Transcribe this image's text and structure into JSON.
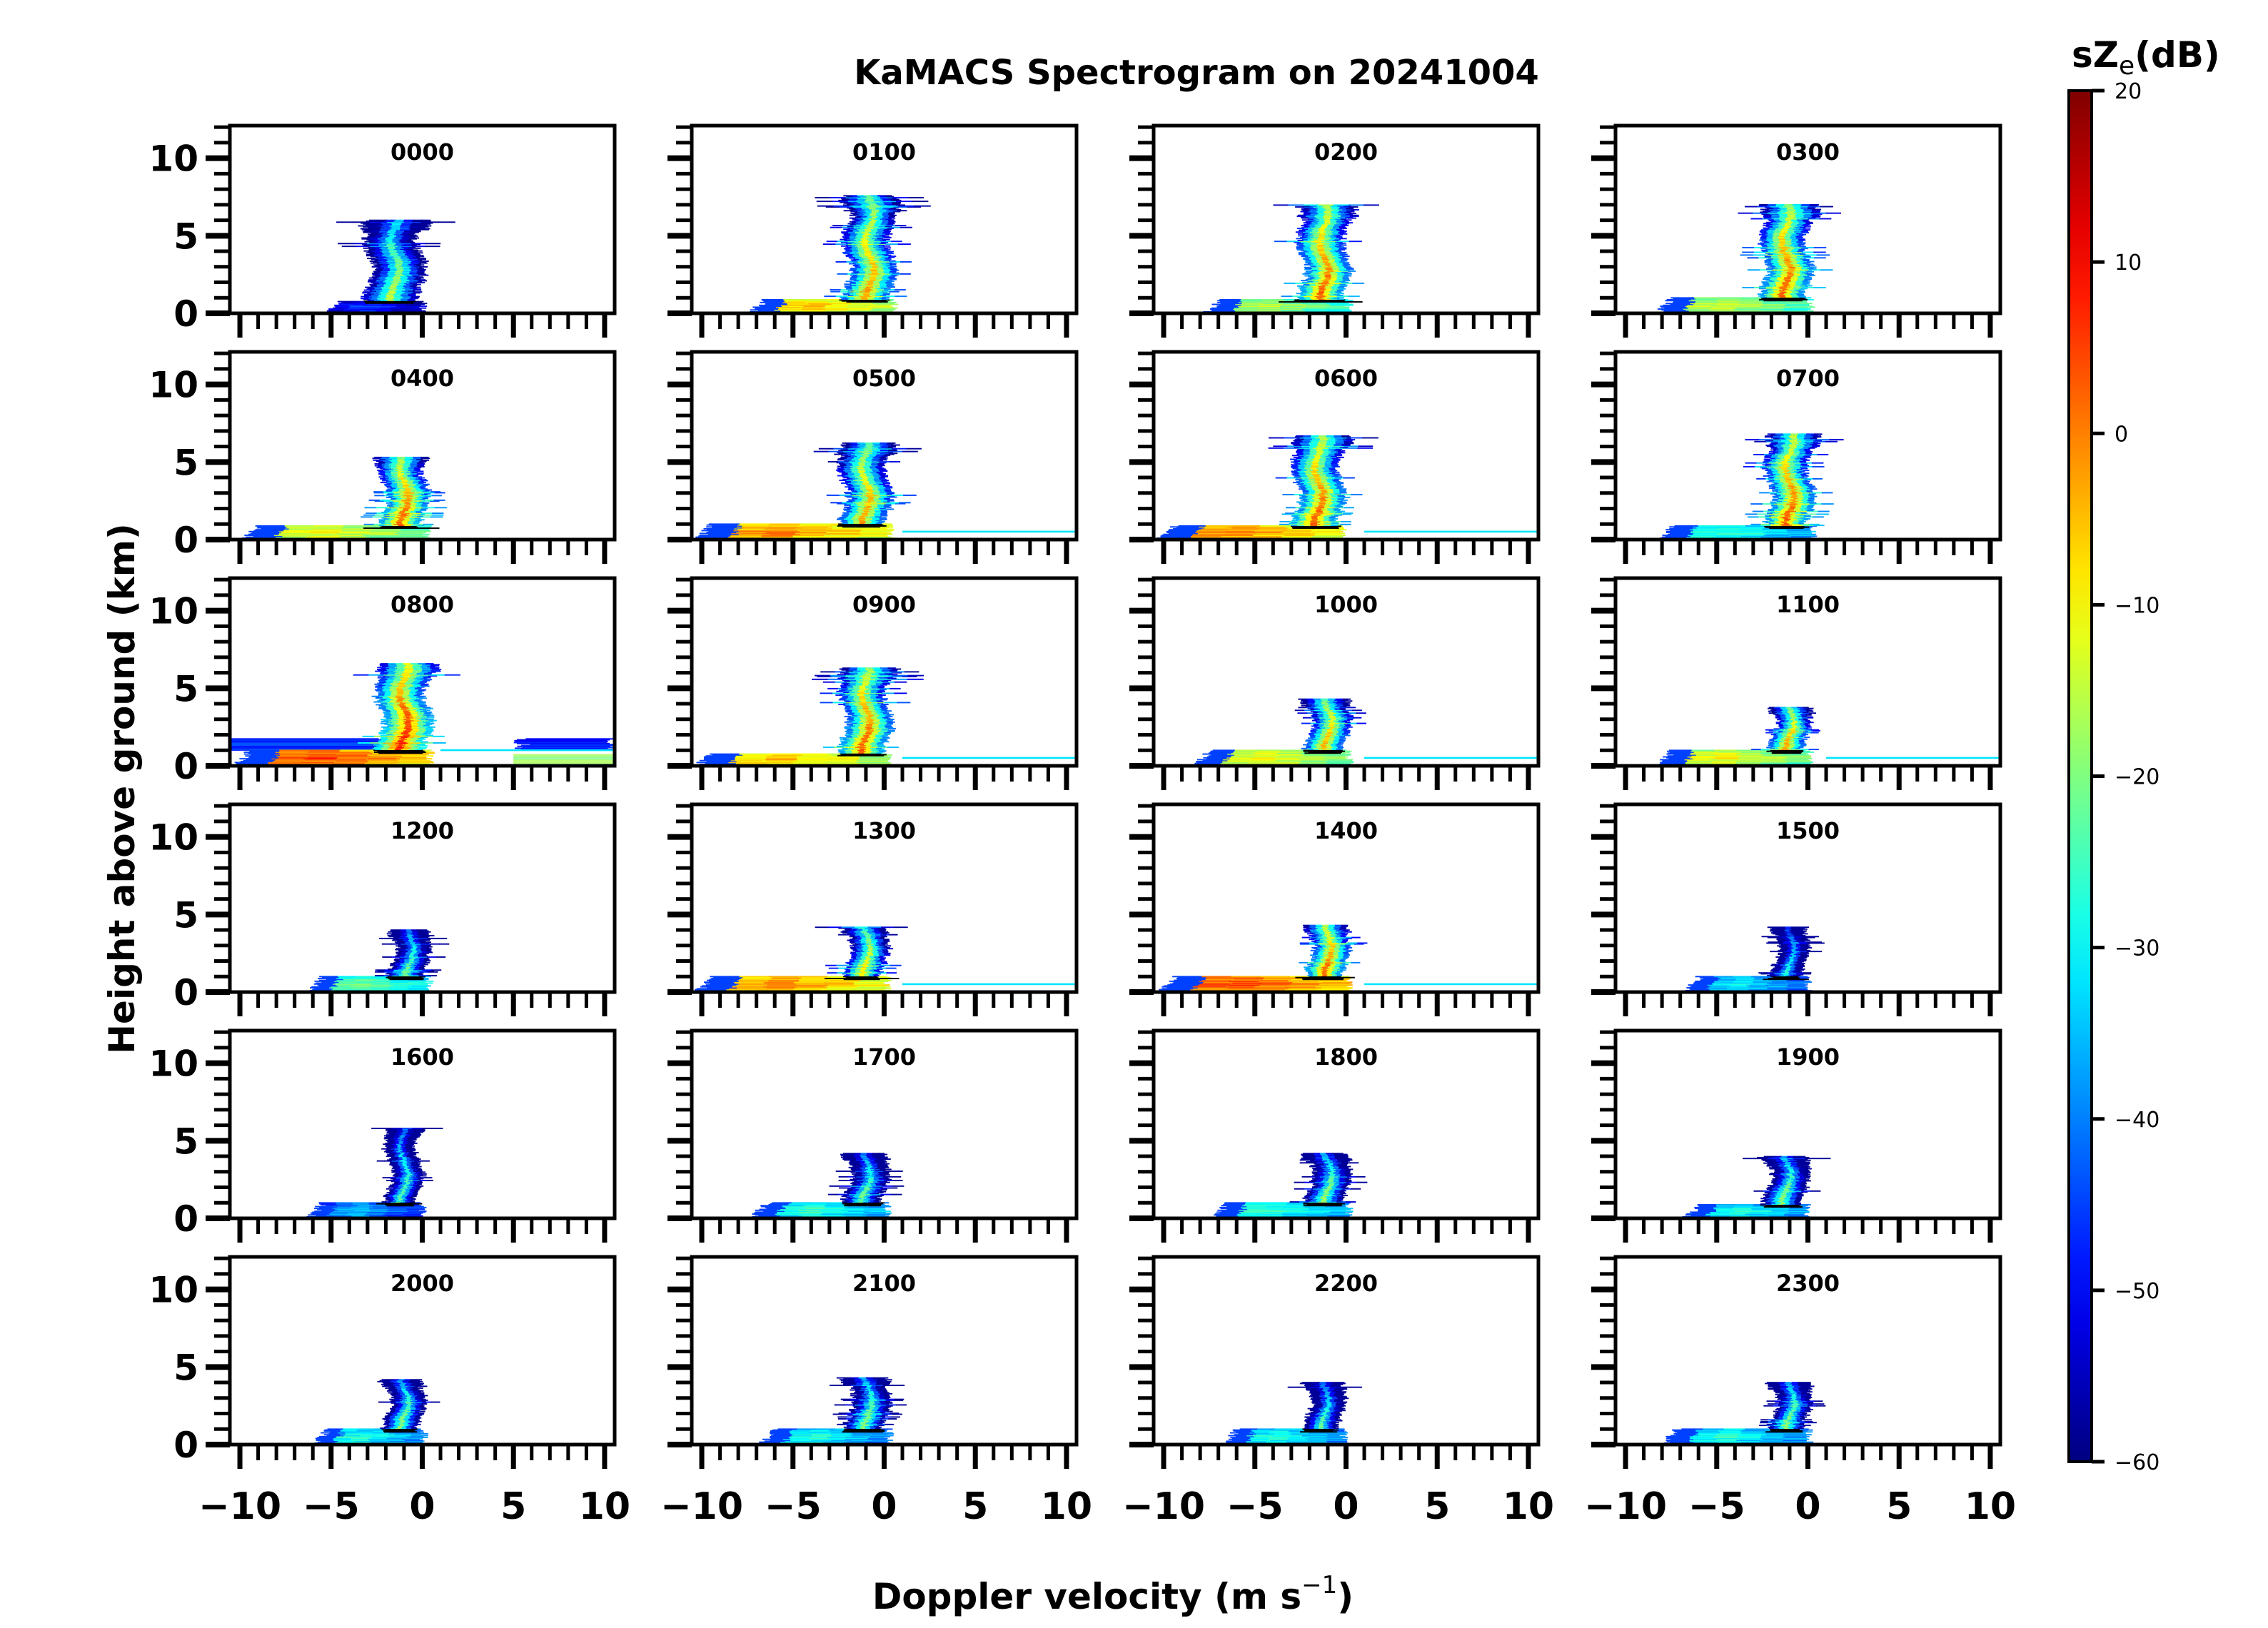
{
  "chart_data": {
    "type": "heatmap",
    "title": "KaMACS Spectrogram on 20241004",
    "xlabel": "Doppler velocity (m s",
    "xlabel_superscript": "−1",
    "xlabel_close": ")",
    "ylabel": "Height above ground (km)",
    "xlim": [
      -10.55,
      10.55
    ],
    "ylim": [
      0,
      12.1
    ],
    "x_ticks": [
      -10,
      -5,
      0,
      5,
      10
    ],
    "x_tick_labels": [
      "−10",
      "−5",
      "0",
      "5",
      "10"
    ],
    "y_ticks": [
      0,
      5,
      10
    ],
    "y_tick_labels": [
      "0",
      "5",
      "10"
    ],
    "grid": false,
    "layout": {
      "rows": 6,
      "cols": 4
    },
    "colorbar": {
      "label_main": "sZ",
      "label_sub": "e",
      "label_unit": "(dB)",
      "range": [
        -60,
        20
      ],
      "ticks": [
        20,
        10,
        0,
        -10,
        -20,
        -30,
        -40,
        -50,
        -60
      ],
      "tick_labels": [
        "20",
        "10",
        "0",
        "−10",
        "−20",
        "−30",
        "−40",
        "−50",
        "−60"
      ],
      "colormap": "jet"
    },
    "panels": [
      {
        "label": "0000",
        "column_velocity": -1.5,
        "column_top_km": 6.0,
        "column_halfwidth": 1.4,
        "column_peak_dB": -12,
        "surface_left_velocity": -5.5,
        "surface_top_km": 0.8,
        "surface_peak_dB": -40,
        "right_layer": false,
        "clutter": false
      },
      {
        "label": "0100",
        "column_velocity": -0.8,
        "column_top_km": 7.6,
        "column_halfwidth": 1.2,
        "column_peak_dB": 0,
        "surface_left_velocity": -7.6,
        "surface_top_km": 0.9,
        "surface_peak_dB": 0,
        "right_layer": false,
        "clutter": false
      },
      {
        "label": "0200",
        "column_velocity": -1.2,
        "column_top_km": 7.0,
        "column_halfwidth": 1.2,
        "column_peak_dB": 5,
        "surface_left_velocity": -8.0,
        "surface_top_km": 0.9,
        "surface_peak_dB": -10,
        "right_layer": false,
        "clutter": false
      },
      {
        "label": "0300",
        "column_velocity": -1.2,
        "column_top_km": 7.0,
        "column_halfwidth": 1.2,
        "column_peak_dB": 5,
        "surface_left_velocity": -8.5,
        "surface_top_km": 1.0,
        "surface_peak_dB": -8,
        "right_layer": false,
        "clutter": false
      },
      {
        "label": "0400",
        "column_velocity": -1.0,
        "column_top_km": 5.3,
        "column_halfwidth": 1.1,
        "column_peak_dB": 5,
        "surface_left_velocity": -10.0,
        "surface_top_km": 0.9,
        "surface_peak_dB": -5,
        "right_layer": false,
        "clutter": false
      },
      {
        "label": "0500",
        "column_velocity": -1.0,
        "column_top_km": 6.2,
        "column_halfwidth": 1.2,
        "column_peak_dB": 0,
        "surface_left_velocity": -10.5,
        "surface_top_km": 1.0,
        "surface_peak_dB": 5,
        "right_layer": true,
        "clutter": false
      },
      {
        "label": "0600",
        "column_velocity": -1.5,
        "column_top_km": 6.7,
        "column_halfwidth": 1.2,
        "column_peak_dB": 5,
        "surface_left_velocity": -10.5,
        "surface_top_km": 0.9,
        "surface_peak_dB": 5,
        "right_layer": true,
        "clutter": false
      },
      {
        "label": "0700",
        "column_velocity": -1.0,
        "column_top_km": 6.8,
        "column_halfwidth": 1.1,
        "column_peak_dB": 5,
        "surface_left_velocity": -8.5,
        "surface_top_km": 0.9,
        "surface_peak_dB": -20,
        "right_layer": false,
        "clutter": false
      },
      {
        "label": "0800",
        "column_velocity": -1.0,
        "column_top_km": 6.6,
        "column_halfwidth": 1.3,
        "column_peak_dB": 10,
        "surface_left_velocity": -10.5,
        "surface_top_km": 1.0,
        "surface_peak_dB": 10,
        "right_layer": true,
        "clutter": true
      },
      {
        "label": "0900",
        "column_velocity": -1.0,
        "column_top_km": 6.3,
        "column_halfwidth": 1.2,
        "column_peak_dB": 5,
        "surface_left_velocity": -10.5,
        "surface_top_km": 0.8,
        "surface_peak_dB": 0,
        "right_layer": true,
        "clutter": false
      },
      {
        "label": "1000",
        "column_velocity": -1.0,
        "column_top_km": 4.3,
        "column_halfwidth": 1.0,
        "column_peak_dB": 0,
        "surface_left_velocity": -8.5,
        "surface_top_km": 1.0,
        "surface_peak_dB": -5,
        "right_layer": true,
        "clutter": false
      },
      {
        "label": "1100",
        "column_velocity": -1.0,
        "column_top_km": 3.8,
        "column_halfwidth": 0.9,
        "column_peak_dB": 0,
        "surface_left_velocity": -8.5,
        "surface_top_km": 1.0,
        "surface_peak_dB": -5,
        "right_layer": true,
        "clutter": false
      },
      {
        "label": "1200",
        "column_velocity": -0.7,
        "column_top_km": 4.0,
        "column_halfwidth": 0.9,
        "column_peak_dB": -18,
        "surface_left_velocity": -6.5,
        "surface_top_km": 1.0,
        "surface_peak_dB": -15,
        "right_layer": false,
        "clutter": false
      },
      {
        "label": "1300",
        "column_velocity": -1.0,
        "column_top_km": 4.2,
        "column_halfwidth": 1.0,
        "column_peak_dB": -5,
        "surface_left_velocity": -10.5,
        "surface_top_km": 1.0,
        "surface_peak_dB": 5,
        "right_layer": true,
        "clutter": false
      },
      {
        "label": "1400",
        "column_velocity": -1.0,
        "column_top_km": 4.3,
        "column_halfwidth": 1.0,
        "column_peak_dB": 5,
        "surface_left_velocity": -10.5,
        "surface_top_km": 1.0,
        "surface_peak_dB": 10,
        "right_layer": true,
        "clutter": false
      },
      {
        "label": "1500",
        "column_velocity": -1.0,
        "column_top_km": 4.2,
        "column_halfwidth": 0.8,
        "column_peak_dB": -25,
        "surface_left_velocity": -7.0,
        "surface_top_km": 1.0,
        "surface_peak_dB": -25,
        "right_layer": false,
        "clutter": false
      },
      {
        "label": "1600",
        "column_velocity": -1.0,
        "column_top_km": 5.8,
        "column_halfwidth": 0.8,
        "column_peak_dB": -20,
        "surface_left_velocity": -6.5,
        "surface_top_km": 1.0,
        "surface_peak_dB": -30,
        "right_layer": false,
        "clutter": false
      },
      {
        "label": "1700",
        "column_velocity": -1.0,
        "column_top_km": 4.2,
        "column_halfwidth": 1.0,
        "column_peak_dB": -18,
        "surface_left_velocity": -7.5,
        "surface_top_km": 1.0,
        "surface_peak_dB": -20,
        "right_layer": false,
        "clutter": false
      },
      {
        "label": "1800",
        "column_velocity": -1.0,
        "column_top_km": 4.2,
        "column_halfwidth": 1.0,
        "column_peak_dB": -15,
        "surface_left_velocity": -7.5,
        "surface_top_km": 1.0,
        "surface_peak_dB": -20,
        "right_layer": false,
        "clutter": false
      },
      {
        "label": "1900",
        "column_velocity": -1.2,
        "column_top_km": 4.0,
        "column_halfwidth": 1.0,
        "column_peak_dB": -15,
        "surface_left_velocity": -7.0,
        "surface_top_km": 0.9,
        "surface_peak_dB": -22,
        "right_layer": false,
        "clutter": false
      },
      {
        "label": "2000",
        "column_velocity": -1.0,
        "column_top_km": 4.2,
        "column_halfwidth": 0.9,
        "column_peak_dB": -15,
        "surface_left_velocity": -6.2,
        "surface_top_km": 1.0,
        "surface_peak_dB": -22,
        "right_layer": false,
        "clutter": false
      },
      {
        "label": "2100",
        "column_velocity": -0.9,
        "column_top_km": 4.3,
        "column_halfwidth": 1.0,
        "column_peak_dB": -15,
        "surface_left_velocity": -7.0,
        "surface_top_km": 1.0,
        "surface_peak_dB": -22,
        "right_layer": false,
        "clutter": false
      },
      {
        "label": "2200",
        "column_velocity": -1.2,
        "column_top_km": 4.0,
        "column_halfwidth": 0.9,
        "column_peak_dB": -20,
        "surface_left_velocity": -7.0,
        "surface_top_km": 1.0,
        "surface_peak_dB": -22,
        "right_layer": false,
        "clutter": false
      },
      {
        "label": "2300",
        "column_velocity": -1.0,
        "column_top_km": 4.0,
        "column_halfwidth": 0.9,
        "column_peak_dB": -15,
        "surface_left_velocity": -8.2,
        "surface_top_km": 1.0,
        "surface_peak_dB": -22,
        "right_layer": false,
        "clutter": false
      }
    ]
  }
}
